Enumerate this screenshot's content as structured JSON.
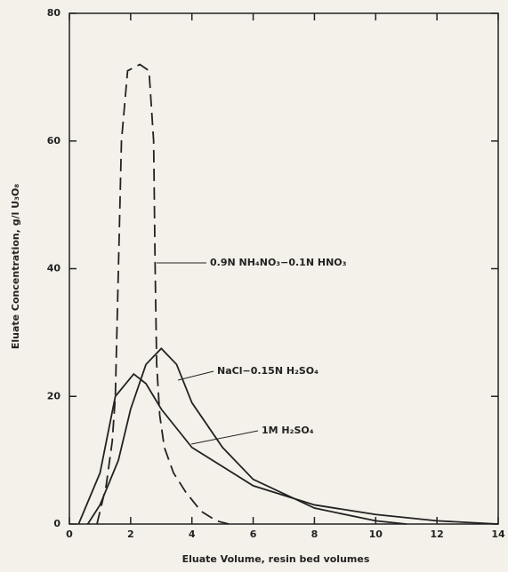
{
  "chart_data": {
    "type": "line",
    "x_label": "Eluate Volume, resin bed volumes",
    "y_label": "Eluate Concentration, g/l U₃O₈",
    "xlim": [
      0,
      14
    ],
    "ylim": [
      0,
      80
    ],
    "xticks": [
      0,
      2,
      4,
      6,
      8,
      10,
      12,
      14
    ],
    "yticks": [
      0,
      20,
      40,
      60,
      80
    ],
    "series": [
      {
        "name": "0.9N NH₄NO₃−0.1N HNO₃",
        "color": "#222",
        "dashed": true,
        "x": [
          0.9,
          1.2,
          1.4,
          1.5,
          1.6,
          1.7,
          1.9,
          2.3,
          2.6,
          2.75,
          2.8,
          2.85,
          2.95,
          3.1,
          3.4,
          3.8,
          4.3,
          4.8,
          5.2
        ],
        "values": [
          0,
          6,
          13,
          20,
          40,
          60,
          71,
          72,
          71,
          60,
          40,
          25,
          17,
          12,
          8,
          5,
          2,
          0.5,
          0
        ]
      },
      {
        "name": "NaCl−0.15N H₂SO₄",
        "color": "#222",
        "dashed": false,
        "x": [
          0.6,
          1.0,
          1.6,
          2.0,
          2.5,
          3.0,
          3.5,
          4.0,
          5.0,
          6.0,
          8.0,
          10.0,
          11.0
        ],
        "values": [
          0,
          3,
          10,
          18,
          25,
          27.5,
          25,
          19,
          12,
          7,
          2.5,
          0.5,
          0
        ]
      },
      {
        "name": "1M H₂SO₄",
        "color": "#222",
        "dashed": false,
        "x": [
          0.3,
          1.0,
          1.5,
          2.1,
          2.5,
          3.0,
          4.0,
          6.0,
          8.0,
          10.0,
          12.0,
          14.0
        ],
        "values": [
          0,
          8,
          20,
          23.5,
          22,
          18,
          12,
          6,
          3,
          1.5,
          0.5,
          0
        ]
      }
    ]
  }
}
